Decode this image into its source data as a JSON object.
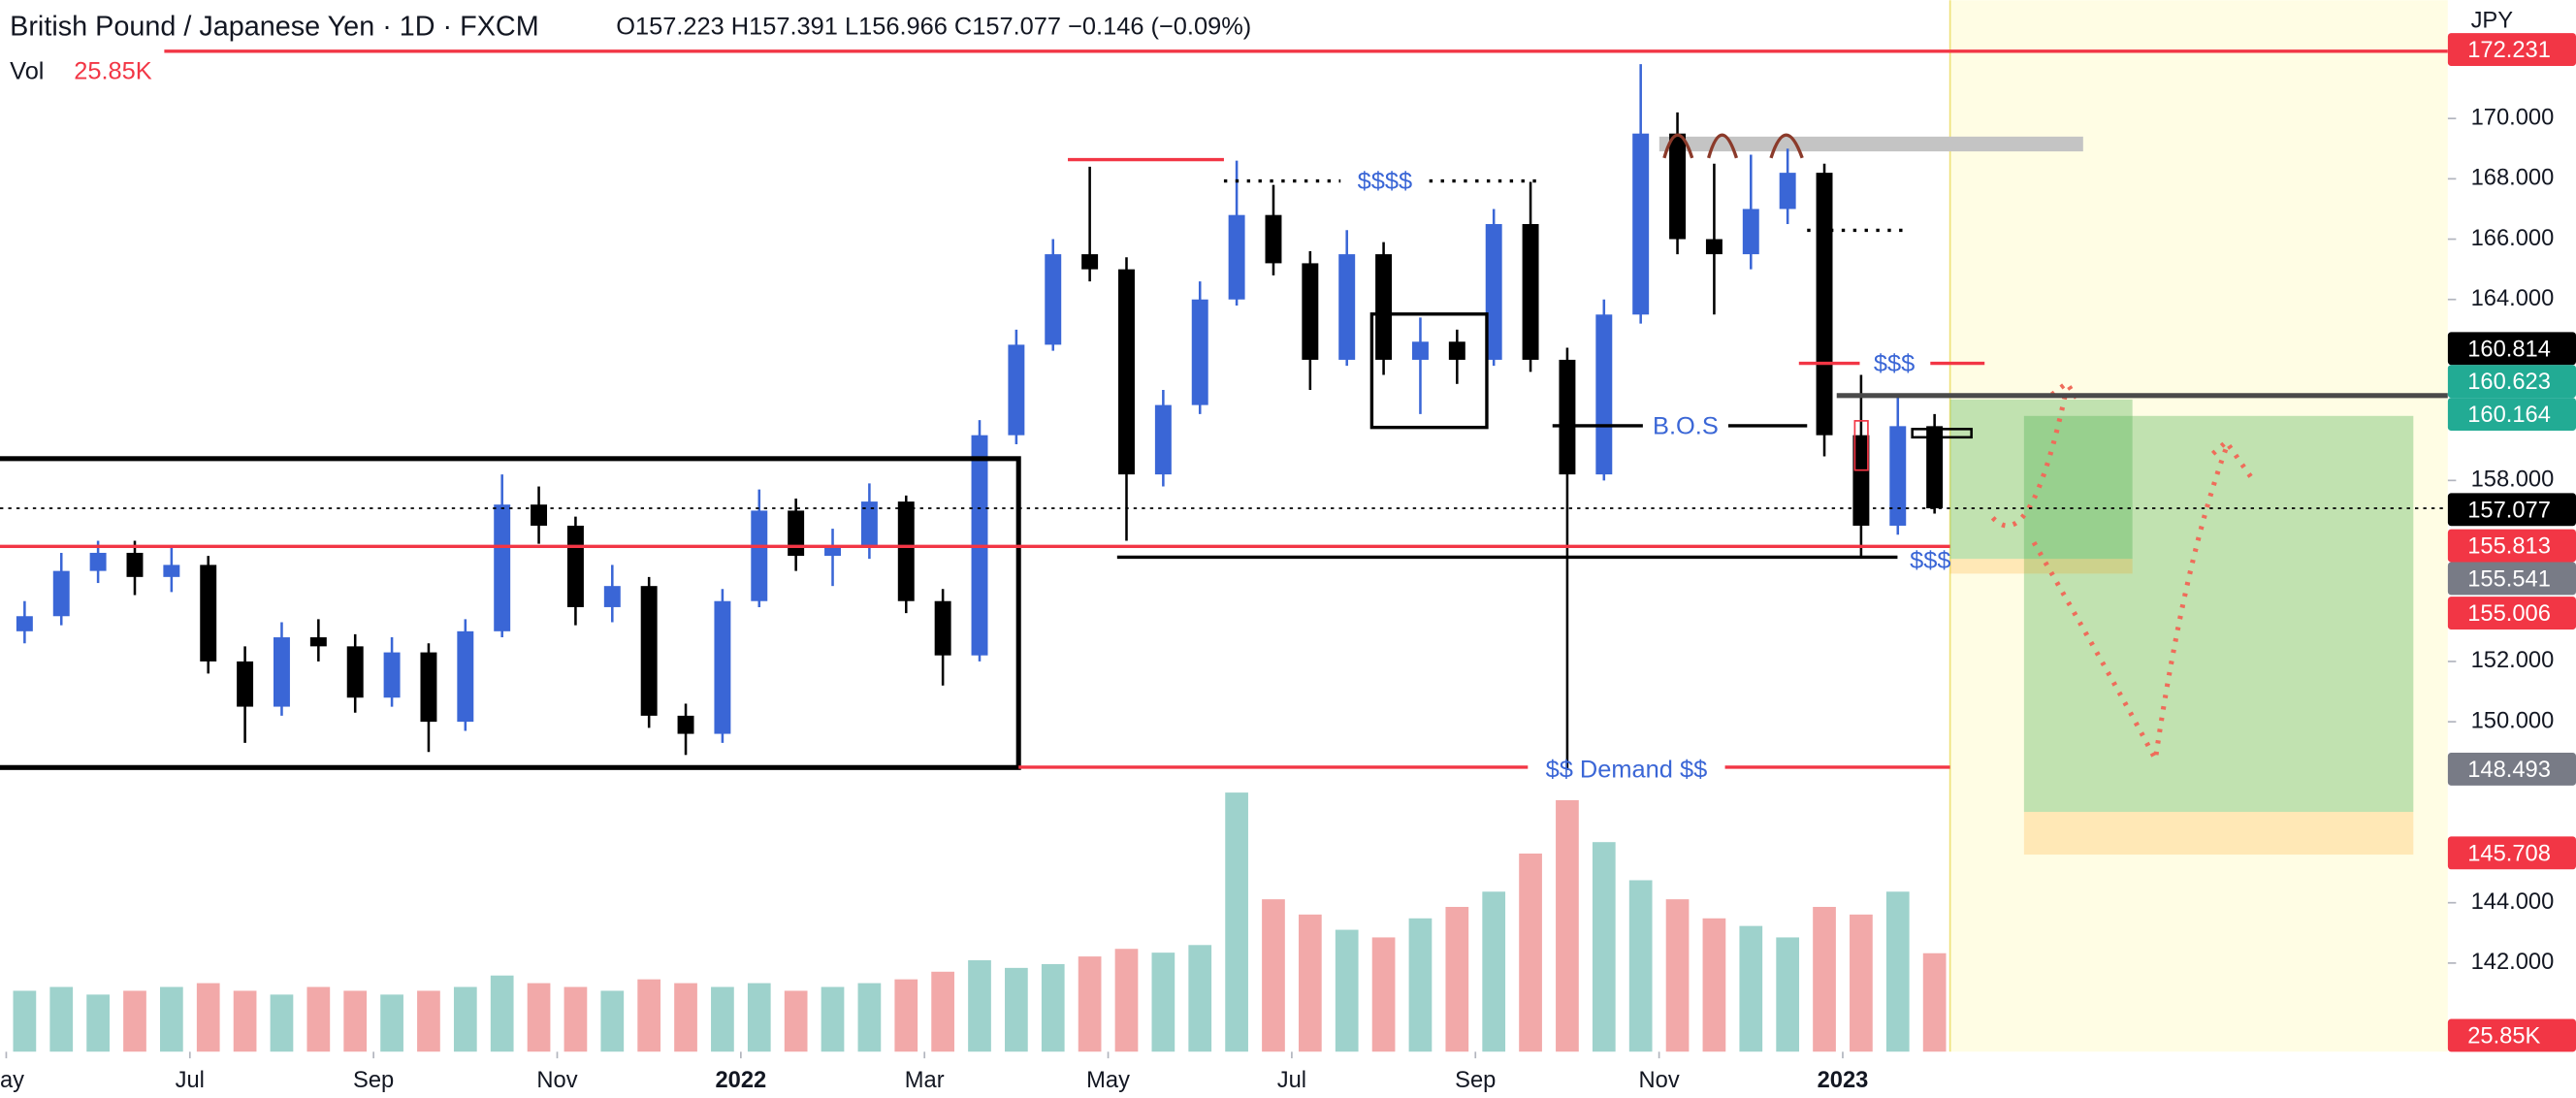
{
  "chart_data": {
    "type": "candlestick",
    "title": "British Pound / Japanese Yen · 1D · FXCM",
    "ohlc_legend": "O157.223 H157.391 L156.966 C157.077 −0.146 (−0.09%)",
    "volume_title": "Vol",
    "volume_label": "25.85K",
    "currency": "JPY",
    "up_color": "#3a66d6",
    "down_color": "#000000",
    "volume_up_color": "#9ed2cc",
    "volume_down_color": "#f2a9a9",
    "x": [
      0.2,
      0.6,
      1.0,
      1.4,
      1.8,
      2.2,
      2.6,
      3.0,
      3.4,
      3.8,
      4.2,
      4.6,
      5.0,
      5.4,
      5.8,
      6.2,
      6.6,
      7.0,
      7.4,
      7.8,
      8.2,
      8.6,
      9.0,
      9.4,
      9.8,
      10.2,
      10.6,
      11.0,
      11.4,
      11.8,
      12.2,
      12.6,
      13.0,
      13.4,
      13.8,
      14.2,
      14.6,
      15.0,
      15.4,
      15.8,
      16.2,
      16.6,
      17.0,
      17.4,
      17.8,
      18.2,
      18.6,
      19.0,
      19.4,
      19.8,
      20.2,
      20.6,
      21.0
    ],
    "open": [
      153.0,
      153.5,
      155.0,
      155.6,
      154.8,
      155.2,
      152.0,
      150.5,
      152.8,
      152.5,
      150.8,
      152.3,
      150.0,
      153.0,
      157.2,
      156.5,
      153.8,
      154.5,
      150.2,
      149.6,
      154.0,
      157.0,
      155.5,
      155.8,
      157.3,
      154.0,
      152.2,
      159.5,
      162.5,
      165.5,
      165.0,
      158.2,
      160.5,
      164.0,
      166.8,
      165.2,
      162.0,
      165.5,
      162.0,
      162.6,
      162.0,
      166.5,
      162.0,
      158.2,
      163.5,
      169.5,
      166.0,
      165.5,
      167.0,
      168.2,
      159.5,
      156.5,
      159.8
    ],
    "high": [
      154.0,
      155.6,
      156.0,
      156.0,
      155.8,
      155.5,
      152.5,
      153.3,
      153.4,
      152.9,
      152.8,
      152.6,
      153.4,
      158.2,
      157.8,
      156.8,
      155.2,
      154.8,
      150.6,
      154.4,
      157.7,
      157.4,
      156.4,
      157.9,
      157.5,
      154.4,
      160.0,
      163.0,
      166.0,
      168.4,
      165.4,
      161.0,
      164.6,
      168.6,
      167.8,
      165.6,
      166.3,
      165.9,
      163.4,
      163.0,
      167.0,
      167.9,
      162.4,
      164.0,
      171.8,
      170.2,
      168.5,
      168.8,
      169.0,
      168.5,
      161.5,
      160.8,
      160.2
    ],
    "low": [
      152.6,
      153.2,
      154.6,
      154.2,
      154.3,
      151.6,
      149.3,
      150.2,
      152.0,
      150.3,
      150.5,
      149.0,
      149.7,
      152.8,
      155.9,
      153.2,
      153.3,
      149.8,
      148.9,
      149.3,
      153.8,
      155.0,
      154.5,
      155.4,
      153.6,
      151.2,
      152.0,
      159.2,
      162.3,
      164.6,
      156.0,
      157.8,
      160.2,
      163.8,
      164.8,
      161.0,
      161.8,
      161.5,
      160.2,
      161.2,
      161.8,
      161.6,
      148.4,
      158.0,
      163.2,
      165.5,
      163.5,
      165.0,
      166.5,
      158.8,
      155.5,
      156.2,
      156.9
    ],
    "close": [
      153.5,
      155.0,
      155.6,
      154.8,
      155.2,
      152.0,
      150.5,
      152.8,
      152.5,
      150.8,
      152.3,
      150.0,
      153.0,
      157.2,
      156.5,
      153.8,
      154.5,
      150.2,
      149.6,
      154.0,
      157.0,
      155.5,
      155.8,
      157.3,
      154.0,
      152.2,
      159.5,
      162.5,
      165.5,
      165.0,
      158.2,
      160.5,
      164.0,
      166.8,
      165.2,
      162.0,
      165.5,
      162.0,
      162.6,
      162.0,
      166.5,
      162.0,
      158.2,
      163.5,
      169.5,
      166.0,
      165.5,
      167.0,
      168.2,
      159.5,
      156.5,
      159.8,
      157.077
    ],
    "volume": [
      16,
      17,
      15,
      16,
      17,
      18,
      16,
      15,
      17,
      16,
      15,
      16,
      17,
      20,
      18,
      17,
      16,
      19,
      18,
      17,
      18,
      16,
      17,
      18,
      19,
      21,
      24,
      22,
      23,
      25,
      27,
      26,
      28,
      68,
      40,
      36,
      32,
      30,
      35,
      38,
      42,
      52,
      66,
      55,
      45,
      40,
      35,
      33,
      30,
      38,
      36,
      42,
      25.85
    ],
    "vlim": [
      0,
      100
    ],
    "xlim": [
      -0.068,
      26.59
    ],
    "ylim": [
      139.06,
      173.92
    ],
    "xticks": [
      {
        "value": 0,
        "label": "ay"
      },
      {
        "value": 2,
        "label": "Jul"
      },
      {
        "value": 4,
        "label": "Sep"
      },
      {
        "value": 6,
        "label": "Nov"
      },
      {
        "value": 8,
        "label": "2022"
      },
      {
        "value": 10,
        "label": "Mar"
      },
      {
        "value": 12,
        "label": "May"
      },
      {
        "value": 14,
        "label": "Jul"
      },
      {
        "value": 16,
        "label": "Sep"
      },
      {
        "value": 18,
        "label": "Nov"
      },
      {
        "value": 20,
        "label": "2023"
      }
    ],
    "yticks": [
      {
        "value": 170,
        "label": "170.000"
      },
      {
        "value": 168,
        "label": "168.000"
      },
      {
        "value": 166,
        "label": "166.000"
      },
      {
        "value": 164,
        "label": "164.000"
      },
      {
        "value": 158,
        "label": "158.000"
      },
      {
        "value": 152,
        "label": "152.000"
      },
      {
        "value": 150,
        "label": "150.000"
      },
      {
        "value": 144,
        "label": "144.000"
      },
      {
        "value": 142,
        "label": "142.000"
      }
    ],
    "price_labels": [
      {
        "value": 172.231,
        "label": "172.231",
        "color": "#f23645"
      },
      {
        "value": 160.814,
        "label": "160.814",
        "color": "#000000"
      },
      {
        "value": 160.623,
        "label": "160.623",
        "color": "#22ab94"
      },
      {
        "value": 160.164,
        "label": "160.164",
        "color": "#22ab94"
      },
      {
        "value": 157.077,
        "label": "157.077",
        "color": "#000000"
      },
      {
        "value": 155.813,
        "label": "155.813",
        "color": "#f23645"
      },
      {
        "value": 155.541,
        "label": "155.541",
        "color": "#787b86"
      },
      {
        "value": 155.006,
        "label": "155.006",
        "color": "#f23645"
      },
      {
        "value": 148.493,
        "label": "148.493",
        "color": "#787b86"
      },
      {
        "value": 145.708,
        "label": "145.708",
        "color": "#f23645"
      }
    ],
    "annotations": {
      "liquidity_top": "$$$$",
      "bos": "B.O.S",
      "liquidity_right": "$$$",
      "liquidity_low": "$$$",
      "demand": "$$ Demand $$"
    }
  }
}
